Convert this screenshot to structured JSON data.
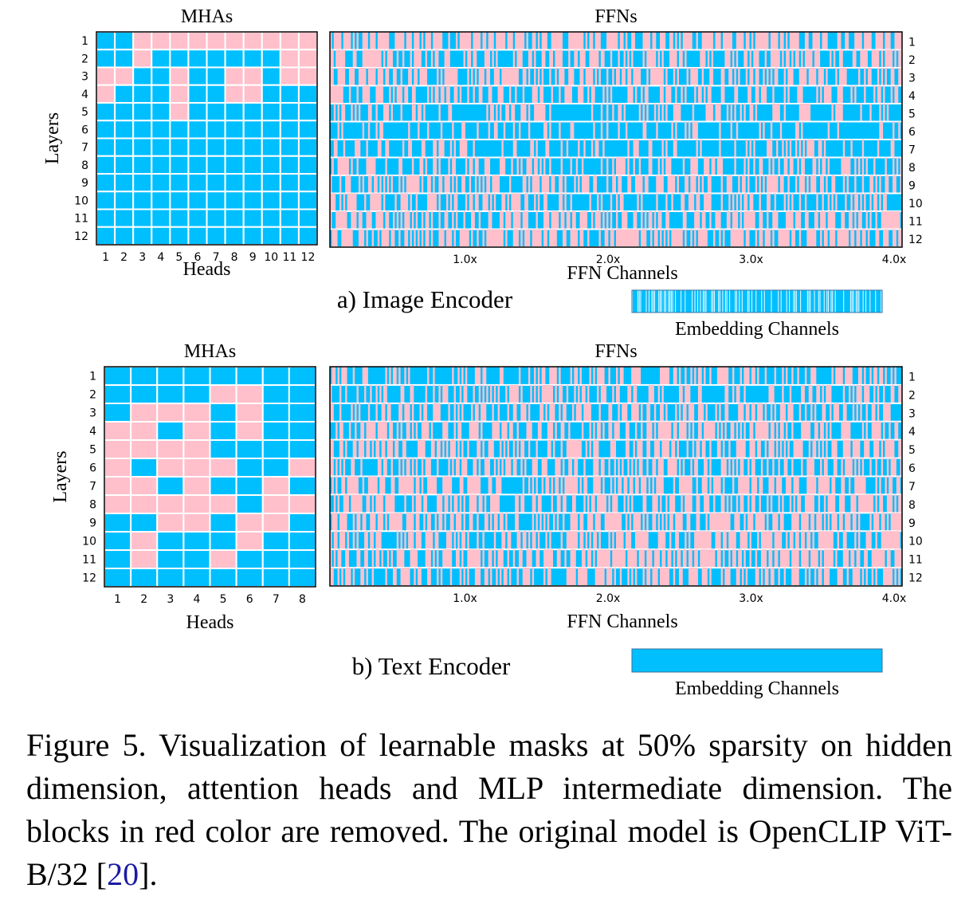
{
  "colors": {
    "kept": "#00bfff",
    "removed": "#ffc0cb",
    "grid": "#ffffff",
    "frame": "#000000"
  },
  "chart_data": [
    {
      "type": "heatmap",
      "panel": "a) Image Encoder",
      "title": "MHAs",
      "xlabel": "Heads",
      "ylabel": "Layers",
      "x_ticks": [
        "1",
        "2",
        "3",
        "4",
        "5",
        "6",
        "7",
        "8",
        "9",
        "10",
        "11",
        "12"
      ],
      "y_ticks": [
        "1",
        "2",
        "3",
        "4",
        "5",
        "6",
        "7",
        "8",
        "9",
        "10",
        "11",
        "12"
      ],
      "legend": {
        "0": "removed",
        "1": "kept"
      },
      "values": [
        [
          1,
          1,
          0,
          0,
          0,
          0,
          0,
          0,
          0,
          0,
          0,
          0
        ],
        [
          1,
          1,
          0,
          1,
          1,
          1,
          1,
          1,
          1,
          1,
          0,
          0
        ],
        [
          0,
          0,
          1,
          1,
          0,
          1,
          1,
          0,
          0,
          1,
          0,
          0
        ],
        [
          0,
          1,
          1,
          1,
          0,
          1,
          1,
          0,
          0,
          1,
          1,
          1
        ],
        [
          1,
          1,
          1,
          1,
          0,
          1,
          1,
          1,
          1,
          1,
          1,
          1
        ],
        [
          1,
          1,
          1,
          1,
          1,
          1,
          1,
          1,
          1,
          1,
          1,
          1
        ],
        [
          1,
          1,
          1,
          1,
          1,
          1,
          1,
          1,
          1,
          1,
          1,
          1
        ],
        [
          1,
          1,
          1,
          1,
          1,
          1,
          1,
          1,
          1,
          1,
          1,
          1
        ],
        [
          1,
          1,
          1,
          1,
          1,
          1,
          1,
          1,
          1,
          1,
          1,
          1
        ],
        [
          1,
          1,
          1,
          1,
          1,
          1,
          1,
          1,
          1,
          1,
          1,
          1
        ],
        [
          1,
          1,
          1,
          1,
          1,
          1,
          1,
          1,
          1,
          1,
          1,
          1
        ],
        [
          1,
          1,
          1,
          1,
          1,
          1,
          1,
          1,
          1,
          1,
          1,
          1
        ]
      ]
    },
    {
      "type": "heatmap",
      "panel": "a) Image Encoder",
      "title": "FFNs",
      "xlabel": "FFN Channels",
      "x_ticks": [
        "1.0x",
        "2.0x",
        "3.0x",
        "4.0x"
      ],
      "y_ticks": [
        "1",
        "2",
        "3",
        "4",
        "5",
        "6",
        "7",
        "8",
        "9",
        "10",
        "11",
        "12"
      ],
      "kept_fraction_by_layer": [
        0.35,
        0.48,
        0.45,
        0.58,
        0.7,
        0.82,
        0.72,
        0.66,
        0.52,
        0.6,
        0.42,
        0.38
      ]
    },
    {
      "type": "heatmap",
      "panel": "a) Image Encoder",
      "xlabel": "Embedding Channels",
      "kept_fraction": 0.55
    },
    {
      "type": "heatmap",
      "panel": "b) Text Encoder",
      "title": "MHAs",
      "xlabel": "Heads",
      "ylabel": "Layers",
      "x_ticks": [
        "1",
        "2",
        "3",
        "4",
        "5",
        "6",
        "7",
        "8"
      ],
      "y_ticks": [
        "1",
        "2",
        "3",
        "4",
        "5",
        "6",
        "7",
        "8",
        "9",
        "10",
        "11",
        "12"
      ],
      "legend": {
        "0": "removed",
        "1": "kept"
      },
      "values": [
        [
          1,
          1,
          1,
          1,
          1,
          1,
          1,
          1
        ],
        [
          1,
          1,
          1,
          1,
          0,
          0,
          1,
          1
        ],
        [
          1,
          0,
          0,
          0,
          1,
          0,
          1,
          1
        ],
        [
          0,
          0,
          1,
          0,
          1,
          0,
          1,
          1
        ],
        [
          0,
          0,
          0,
          0,
          1,
          1,
          1,
          1
        ],
        [
          0,
          1,
          0,
          0,
          0,
          1,
          1,
          0
        ],
        [
          0,
          0,
          1,
          0,
          1,
          1,
          0,
          1
        ],
        [
          0,
          0,
          0,
          0,
          0,
          1,
          0,
          0
        ],
        [
          1,
          1,
          0,
          0,
          1,
          0,
          0,
          1
        ],
        [
          1,
          0,
          1,
          1,
          1,
          0,
          1,
          1
        ],
        [
          1,
          0,
          1,
          1,
          0,
          1,
          1,
          1
        ],
        [
          1,
          1,
          1,
          1,
          1,
          1,
          1,
          1
        ]
      ]
    },
    {
      "type": "heatmap",
      "panel": "b) Text Encoder",
      "title": "FFNs",
      "xlabel": "FFN Channels",
      "x_ticks": [
        "1.0x",
        "2.0x",
        "3.0x",
        "4.0x"
      ],
      "y_ticks": [
        "1",
        "2",
        "3",
        "4",
        "5",
        "6",
        "7",
        "8",
        "9",
        "10",
        "11",
        "12"
      ],
      "kept_fraction_by_layer": [
        0.62,
        0.58,
        0.55,
        0.5,
        0.5,
        0.48,
        0.45,
        0.45,
        0.4,
        0.38,
        0.35,
        0.5
      ]
    },
    {
      "type": "heatmap",
      "panel": "b) Text Encoder",
      "xlabel": "Embedding Channels",
      "kept_fraction": 1.0
    }
  ],
  "panels": {
    "a": {
      "label": "a) Image Encoder"
    },
    "b": {
      "label": "b) Text Encoder"
    }
  },
  "caption": {
    "text_before": "Figure 5. Visualization of learnable masks at 50% sparsity on hidden dimension, attention heads and MLP intermediate dimension. The blocks in red color are removed. The original model is OpenCLIP ViT-B/32 [",
    "ref": "20",
    "text_after": "]."
  }
}
